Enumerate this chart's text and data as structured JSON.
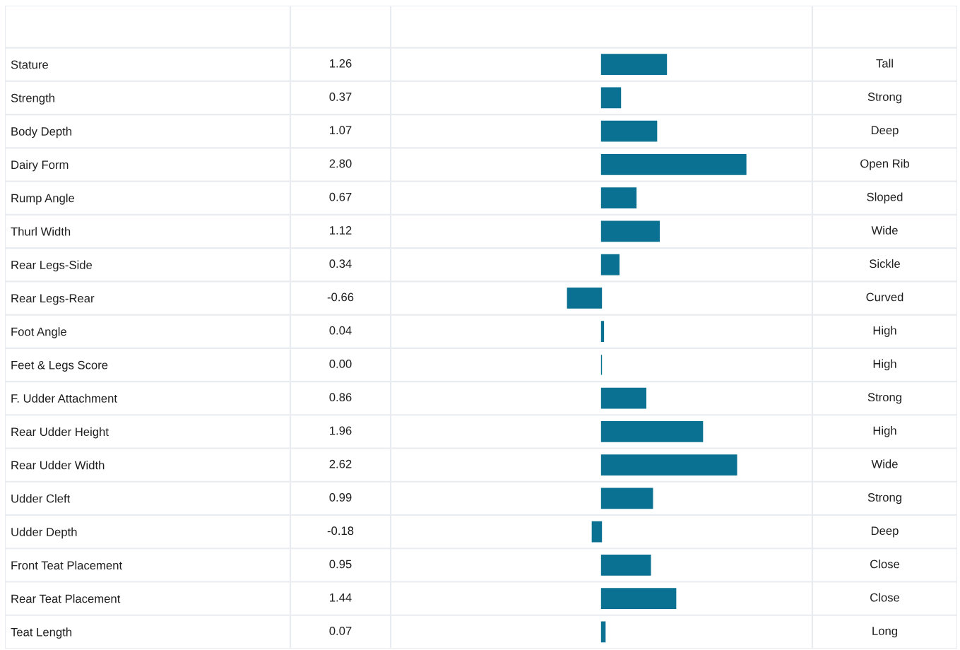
{
  "chart_data": {
    "type": "bar",
    "orientation": "horizontal",
    "tick_labels": "y",
    "categories": [
      "Stature",
      "Strength",
      "Body Depth",
      "Dairy Form",
      "Rump Angle",
      "Thurl Width",
      "Rear Legs-Side",
      "Rear Legs-Rear",
      "Foot Angle",
      "Feet & Legs Score",
      "F. Udder Attachment",
      "Rear Udder Height",
      "Rear Udder Width",
      "Udder Cleft",
      "Udder Depth",
      "Front Teat Placement",
      "Rear Teat Placement",
      "Teat Length"
    ],
    "values": [
      1.26,
      0.37,
      1.07,
      2.8,
      0.67,
      1.12,
      0.34,
      -0.66,
      0.04,
      0.0,
      0.86,
      1.96,
      2.62,
      0.99,
      -0.18,
      0.95,
      1.44,
      0.07
    ],
    "value_labels": [
      "1.26",
      "0.37",
      "1.07",
      "2.80",
      "0.67",
      "1.12",
      "0.34",
      "-0.66",
      "0.04",
      "0.00",
      "0.86",
      "1.96",
      "2.62",
      "0.99",
      "-0.18",
      "0.95",
      "1.44",
      "0.07"
    ],
    "y2_categories": [
      "Tall",
      "Strong",
      "Deep",
      "Open Rib",
      "Sloped",
      "Wide",
      "Sickle",
      "Curved",
      "High",
      "High",
      "Strong",
      "High",
      "Wide",
      "Strong",
      "Deep",
      "Close",
      "Close",
      "Long"
    ],
    "color": "#0b7192"
  }
}
